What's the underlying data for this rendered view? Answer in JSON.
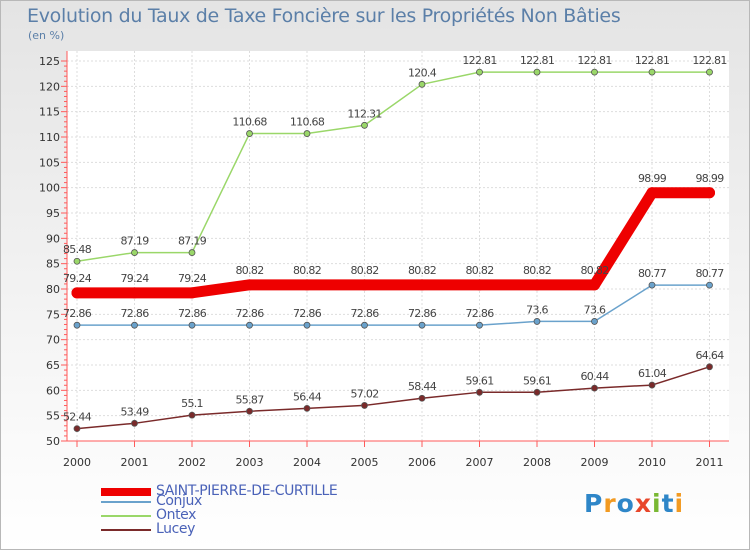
{
  "chart_data": {
    "type": "line",
    "title": "Evolution du Taux de Taxe Foncière sur les Propriétés Non Bâties",
    "ylabel": "(en %)",
    "xlabel": "",
    "ylim": [
      50,
      125
    ],
    "yticks": [
      50,
      55,
      60,
      65,
      70,
      75,
      80,
      85,
      90,
      95,
      100,
      105,
      110,
      115,
      120,
      125
    ],
    "categories": [
      "2000",
      "2001",
      "2002",
      "2003",
      "2004",
      "2005",
      "2006",
      "2007",
      "2008",
      "2009",
      "2010",
      "2011"
    ],
    "series": [
      {
        "name": "SAINT-PIERRE-DE-CURTILLE",
        "color": "#ee0000",
        "values": [
          79.24,
          79.24,
          79.24,
          80.82,
          80.82,
          80.82,
          80.82,
          80.82,
          80.82,
          80.82,
          98.99,
          98.99
        ],
        "labels": [
          "79.24",
          "79.24",
          "79.24",
          "80.82",
          "80.82",
          "80.82",
          "80.82",
          "80.82",
          "80.82",
          "80.82",
          "98.99",
          "98.99"
        ]
      },
      {
        "name": "Conjux",
        "color": "#6aa2cc",
        "values": [
          72.86,
          72.86,
          72.86,
          72.86,
          72.86,
          72.86,
          72.86,
          72.86,
          73.6,
          73.6,
          80.77,
          80.77
        ],
        "labels": [
          "72.86",
          "72.86",
          "72.86",
          "72.86",
          "72.86",
          "72.86",
          "72.86",
          "72.86",
          "73.6",
          "73.6",
          "80.77",
          "80.77"
        ]
      },
      {
        "name": "Ontex",
        "color": "#9ad769",
        "values": [
          85.48,
          87.19,
          87.19,
          110.68,
          110.68,
          112.31,
          120.4,
          122.81,
          122.81,
          122.81,
          122.81,
          122.81
        ],
        "labels": [
          "85.48",
          "87.19",
          "87.19",
          "110.68",
          "110.68",
          "112.31",
          "120.4",
          "122.81",
          "122.81",
          "122.81",
          "122.81",
          "122.81"
        ]
      },
      {
        "name": "Lucey",
        "color": "#7a2a2a",
        "values": [
          52.44,
          53.49,
          55.1,
          55.87,
          56.44,
          57.02,
          58.44,
          59.61,
          59.61,
          60.44,
          61.04,
          64.64
        ],
        "labels": [
          "52.44",
          "53.49",
          "55.1",
          "55.87",
          "56.44",
          "57.02",
          "58.44",
          "59.61",
          "59.61",
          "60.44",
          "61.04",
          "64.64"
        ]
      }
    ],
    "legend_position": "bottom-left",
    "grid": true
  },
  "logo": {
    "letters": [
      "P",
      "r",
      "o",
      "x",
      "i",
      "t",
      "i"
    ]
  }
}
